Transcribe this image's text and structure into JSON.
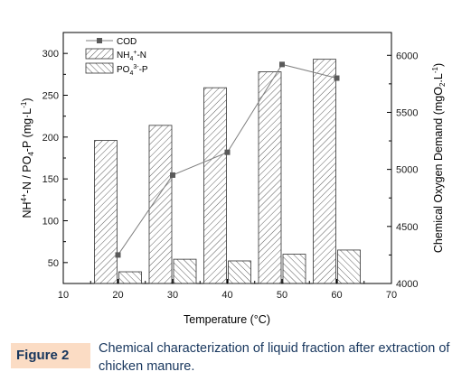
{
  "chart_data": {
    "type": "bar",
    "x_axis": {
      "label": "Temperature (°C)",
      "range": [
        10,
        70
      ],
      "ticks": [
        "10",
        "20",
        "30",
        "40",
        "50",
        "60",
        "70"
      ]
    },
    "left_axis": {
      "label_main": "NH",
      "label_sup1": "4",
      "label_sup1b": "+",
      "label_mid": "-N / PO",
      "label_sub": "4",
      "label_tail": "-P (mg·L",
      "label_sup2": "-1",
      "label_end": ")",
      "range": [
        25,
        325
      ],
      "ticks": [
        "50",
        "100",
        "150",
        "200",
        "250",
        "300"
      ]
    },
    "right_axis": {
      "label_main": "Chemical Oxygen Demand (mgO",
      "label_sub": "2",
      "label_mid": ".L",
      "label_sup": "-1",
      "label_end": ")",
      "range": [
        4000,
        6200
      ],
      "ticks": [
        "4000",
        "4500",
        "5000",
        "5500",
        "6000"
      ]
    },
    "categories": [
      20,
      30,
      40,
      50,
      60
    ],
    "series": [
      {
        "name": "COD",
        "kind": "line",
        "axis": "right",
        "values": [
          4250,
          4950,
          5150,
          5920,
          5800
        ]
      },
      {
        "name": "NH4+-N",
        "label_main": "NH",
        "label_sub": "4",
        "label_sup": "+",
        "label_tail": "-N",
        "kind": "bar",
        "axis": "left",
        "values": [
          196,
          214,
          259,
          278,
          293
        ]
      },
      {
        "name": "PO43--P",
        "label_main": "PO",
        "label_sub": "4",
        "label_sup": "3-",
        "label_tail": "-P",
        "kind": "bar",
        "axis": "left",
        "values": [
          39,
          54,
          52,
          60,
          65
        ]
      }
    ],
    "legend_position": "top-left",
    "grid": false
  },
  "caption": {
    "label": "Figure 2",
    "text": "Chemical characterization of liquid fraction after extraction of chicken manure."
  },
  "colors": {
    "caption_label_bg": "#fbdcc4",
    "caption_text": "#17365d",
    "cod_line": "#7f7f7f",
    "cod_marker": "#5a5a5a"
  }
}
